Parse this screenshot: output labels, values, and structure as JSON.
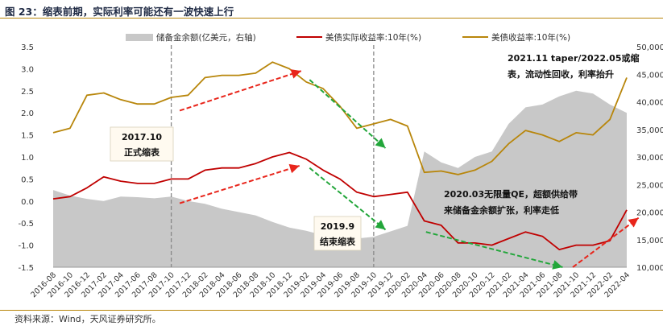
{
  "figure": {
    "title": "图 23：缩表前期，实际利率可能还有一波快速上行",
    "source": "资料来源：Wind，天风证券研究所。"
  },
  "colors": {
    "area": "#c8c8c8",
    "real_yield": "#c00000",
    "nominal_yield": "#b8860b",
    "arrow_red": "#e8251b",
    "arrow_green": "#22a63a",
    "vline": "#888888",
    "rule": "#b8860b"
  },
  "annotations": {
    "a2017": [
      "2017.10",
      "正式缩表"
    ],
    "a2019": [
      "2019.9",
      "结束缩表"
    ],
    "a2020": [
      "2020.03无限量QE，超额供给带",
      "来储备金余额扩张，利率走低"
    ],
    "a2021": [
      "2021.11 taper/2022.05或缩",
      "表，流动性回收，利率抬升"
    ]
  },
  "chart_data": {
    "type": "line",
    "legend": [
      "储备金余额(亿美元，右轴)",
      "美债实际收益率:10年(%)",
      "美债收益率:10年(%)"
    ],
    "legend_position": "top",
    "x": [
      "2016-08",
      "2016-10",
      "2016-12",
      "2017-02",
      "2017-04",
      "2017-06",
      "2017-08",
      "2017-10",
      "2017-12",
      "2018-02",
      "2018-04",
      "2018-06",
      "2018-08",
      "2018-10",
      "2018-12",
      "2019-02",
      "2019-04",
      "2019-06",
      "2019-08",
      "2019-10",
      "2019-12",
      "2020-02",
      "2020-04",
      "2020-06",
      "2020-08",
      "2020-10",
      "2020-12",
      "2021-02",
      "2021-04",
      "2021-06",
      "2021-08",
      "2021-10",
      "2021-12",
      "2022-02",
      "2022-04"
    ],
    "ylim_left": [
      -1.5,
      3.5
    ],
    "yticks_left": [
      "3.5",
      "3.0",
      "2.5",
      "2.0",
      "1.5",
      "1.0",
      "0.5",
      "0.0",
      "-0.5",
      "-1.0",
      "-1.5"
    ],
    "ylim_right": [
      10000,
      50000
    ],
    "yticks_right": [
      "50,000",
      "45,000",
      "40,000",
      "35,000",
      "30,000",
      "25,000",
      "20,000",
      "15,000",
      "10,000"
    ],
    "grid": false,
    "series": [
      {
        "name": "储备金余额(亿美元，右轴)",
        "type": "area",
        "axis": "right",
        "values": [
          24000,
          23000,
          22400,
          22000,
          22800,
          22700,
          22500,
          22800,
          22000,
          21500,
          20600,
          20000,
          19400,
          18200,
          17200,
          16600,
          15800,
          15400,
          15200,
          15500,
          16500,
          17500,
          31000,
          29000,
          28000,
          30000,
          31000,
          36000,
          39000,
          39500,
          41000,
          42000,
          41500,
          39500,
          38000
        ]
      },
      {
        "name": "美债实际收益率:10年(%)",
        "type": "line",
        "axis": "left",
        "values": [
          0.05,
          0.1,
          0.3,
          0.55,
          0.45,
          0.4,
          0.4,
          0.5,
          0.5,
          0.7,
          0.75,
          0.75,
          0.85,
          1.0,
          1.1,
          0.95,
          0.7,
          0.5,
          0.2,
          0.1,
          0.15,
          0.2,
          -0.45,
          -0.55,
          -0.95,
          -0.95,
          -1.0,
          -0.85,
          -0.7,
          -0.8,
          -1.1,
          -1.0,
          -1.0,
          -0.9,
          -0.2
        ]
      },
      {
        "name": "美债收益率:10年(%)",
        "type": "line",
        "axis": "left",
        "values": [
          1.55,
          1.65,
          2.4,
          2.45,
          2.3,
          2.2,
          2.2,
          2.35,
          2.4,
          2.8,
          2.85,
          2.85,
          2.9,
          3.15,
          3.0,
          2.7,
          2.55,
          2.15,
          1.65,
          1.75,
          1.85,
          1.7,
          0.65,
          0.68,
          0.6,
          0.7,
          0.9,
          1.3,
          1.6,
          1.5,
          1.35,
          1.55,
          1.5,
          1.85,
          2.8
        ]
      }
    ]
  }
}
